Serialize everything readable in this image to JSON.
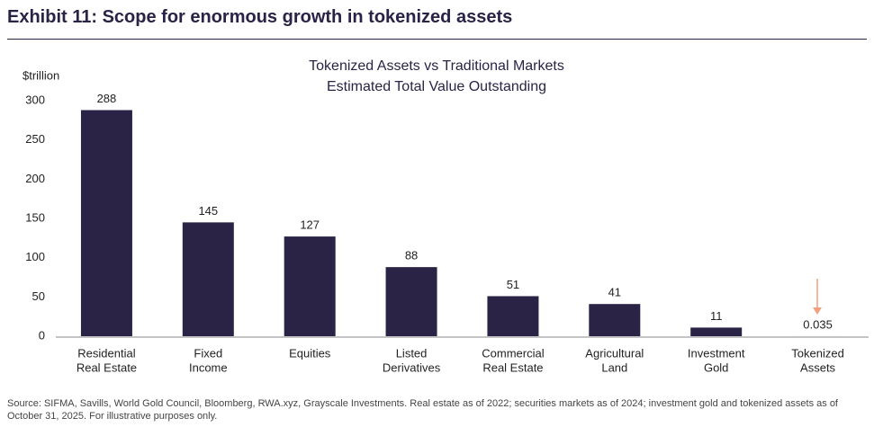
{
  "header": {
    "title": "Exhibit 11: Scope for enormous growth in tokenized assets"
  },
  "chart_data": {
    "type": "bar",
    "title": [
      "Tokenized Assets vs Traditional Markets",
      "Estimated Total Value Outstanding"
    ],
    "y_axis_label": "$trillion",
    "categories": [
      [
        "Residential",
        "Real Estate"
      ],
      [
        "Fixed",
        "Income"
      ],
      [
        "Equities"
      ],
      [
        "Listed",
        "Derivatives"
      ],
      [
        "Commercial",
        "Real Estate"
      ],
      [
        "Agricultural",
        "Land"
      ],
      [
        "Investment",
        "Gold"
      ],
      [
        "Tokenized",
        "Assets"
      ]
    ],
    "values": [
      288,
      145,
      127,
      88,
      51,
      41,
      11,
      0.035
    ],
    "color": "#2b2346",
    "ylim": [
      0,
      300
    ],
    "yticks": [
      0,
      50,
      100,
      150,
      200,
      250,
      300
    ],
    "grid": false
  },
  "footer": {
    "source": "Source: SIFMA, Savills, World Gold Council, Bloomberg, RWA.xyz, Grayscale Investments. Real estate as of 2022; securities markets as of 2024; investment gold and tokenized assets as of October 31, 2025. For illustrative purposes only."
  }
}
